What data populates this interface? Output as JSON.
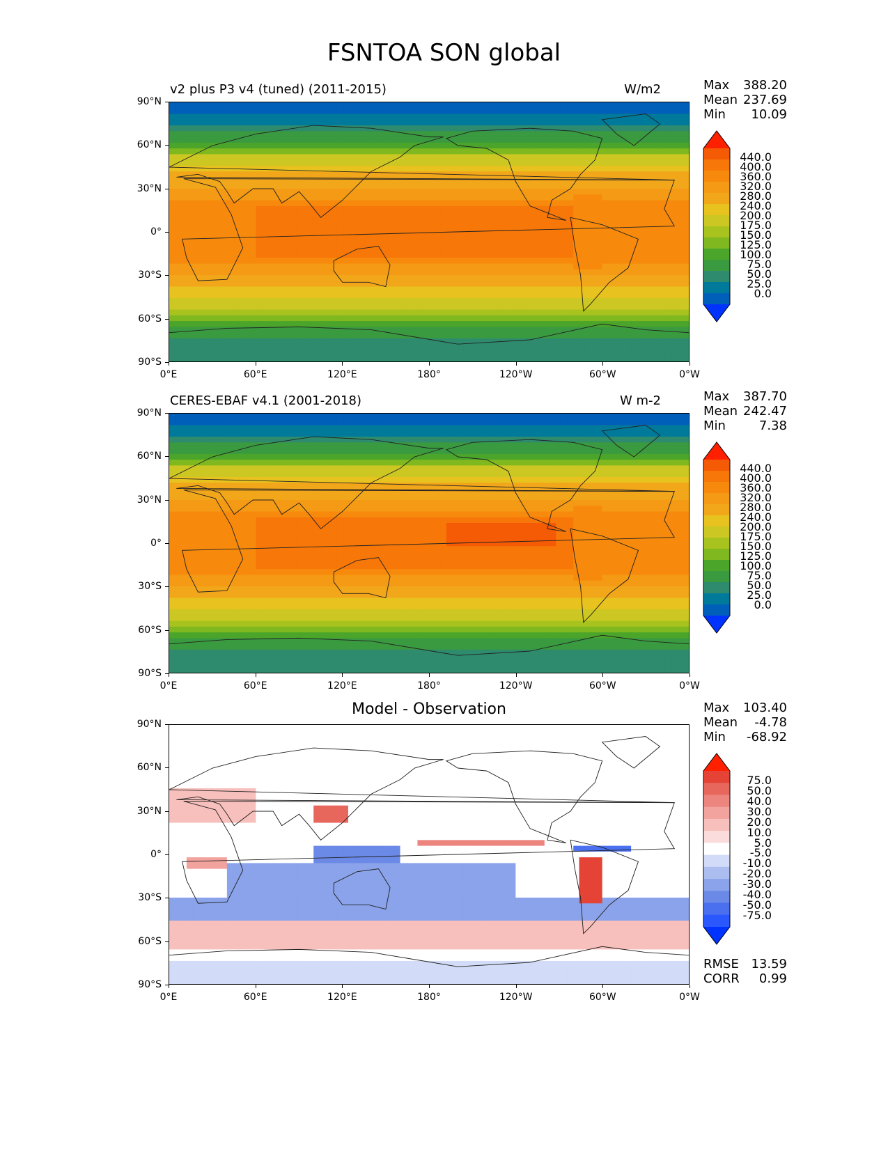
{
  "title": "FSNTOA SON global",
  "axes": {
    "lat_labels": [
      "90°N",
      "60°N",
      "30°N",
      "0°",
      "30°S",
      "60°S",
      "90°S"
    ],
    "lon_labels": [
      "0°E",
      "60°E",
      "120°E",
      "180°",
      "120°W",
      "60°W",
      "0°W"
    ]
  },
  "panels": [
    {
      "name": "v2 plus P3 v4 (tuned) (2011-2015)",
      "units": "W/m2",
      "stats": {
        "labels": [
          "Max",
          "Mean",
          "Min"
        ],
        "values": [
          "388.20",
          "237.69",
          "10.09"
        ]
      },
      "colorbar_labels": [
        "440.0",
        "400.0",
        "360.0",
        "320.0",
        "280.0",
        "240.0",
        "200.0",
        "175.0",
        "150.0",
        "125.0",
        "100.0",
        "75.0",
        "50.0",
        "25.0",
        "0.0"
      ]
    },
    {
      "name": "CERES-EBAF v4.1 (2001-2018)",
      "units": "W m-2",
      "stats": {
        "labels": [
          "Max",
          "Mean",
          "Min"
        ],
        "values": [
          "387.70",
          "242.47",
          "7.38"
        ]
      },
      "colorbar_labels": [
        "440.0",
        "400.0",
        "360.0",
        "320.0",
        "280.0",
        "240.0",
        "200.0",
        "175.0",
        "150.0",
        "125.0",
        "100.0",
        "75.0",
        "50.0",
        "25.0",
        "0.0"
      ]
    },
    {
      "center_title": "Model - Observation",
      "stats": {
        "labels": [
          "Max",
          "Mean",
          "Min"
        ],
        "values": [
          "103.40",
          "-4.78",
          "-68.92"
        ]
      },
      "colorbar_labels": [
        "75.0",
        "50.0",
        "40.0",
        "30.0",
        "20.0",
        "10.0",
        "5.0",
        "-5.0",
        "-10.0",
        "-20.0",
        "-30.0",
        "-40.0",
        "-50.0",
        "-75.0"
      ],
      "extra_stats": {
        "labels": [
          "RMSE",
          "CORR"
        ],
        "values": [
          "13.59",
          "0.99"
        ]
      }
    }
  ],
  "colors": {
    "abs_scale": [
      "#0033ff",
      "#005fb8",
      "#007a9a",
      "#2e8b6d",
      "#3a9a40",
      "#4aa52a",
      "#7fb81f",
      "#a8c21e",
      "#ccc722",
      "#e8c21f",
      "#f2a61a",
      "#f59a14",
      "#f78a0c",
      "#f77708",
      "#f55a05",
      "#ff2000"
    ],
    "diff_scale": [
      "#0033ff",
      "#2b57ff",
      "#4a6fef",
      "#6b89e6",
      "#8aa3ea",
      "#acbdf0",
      "#d2dbf7",
      "#ffffff",
      "#fbdcdc",
      "#f8c0bc",
      "#f2a39d",
      "#ec857e",
      "#e8675d",
      "#e44335",
      "#ff2000"
    ]
  }
}
